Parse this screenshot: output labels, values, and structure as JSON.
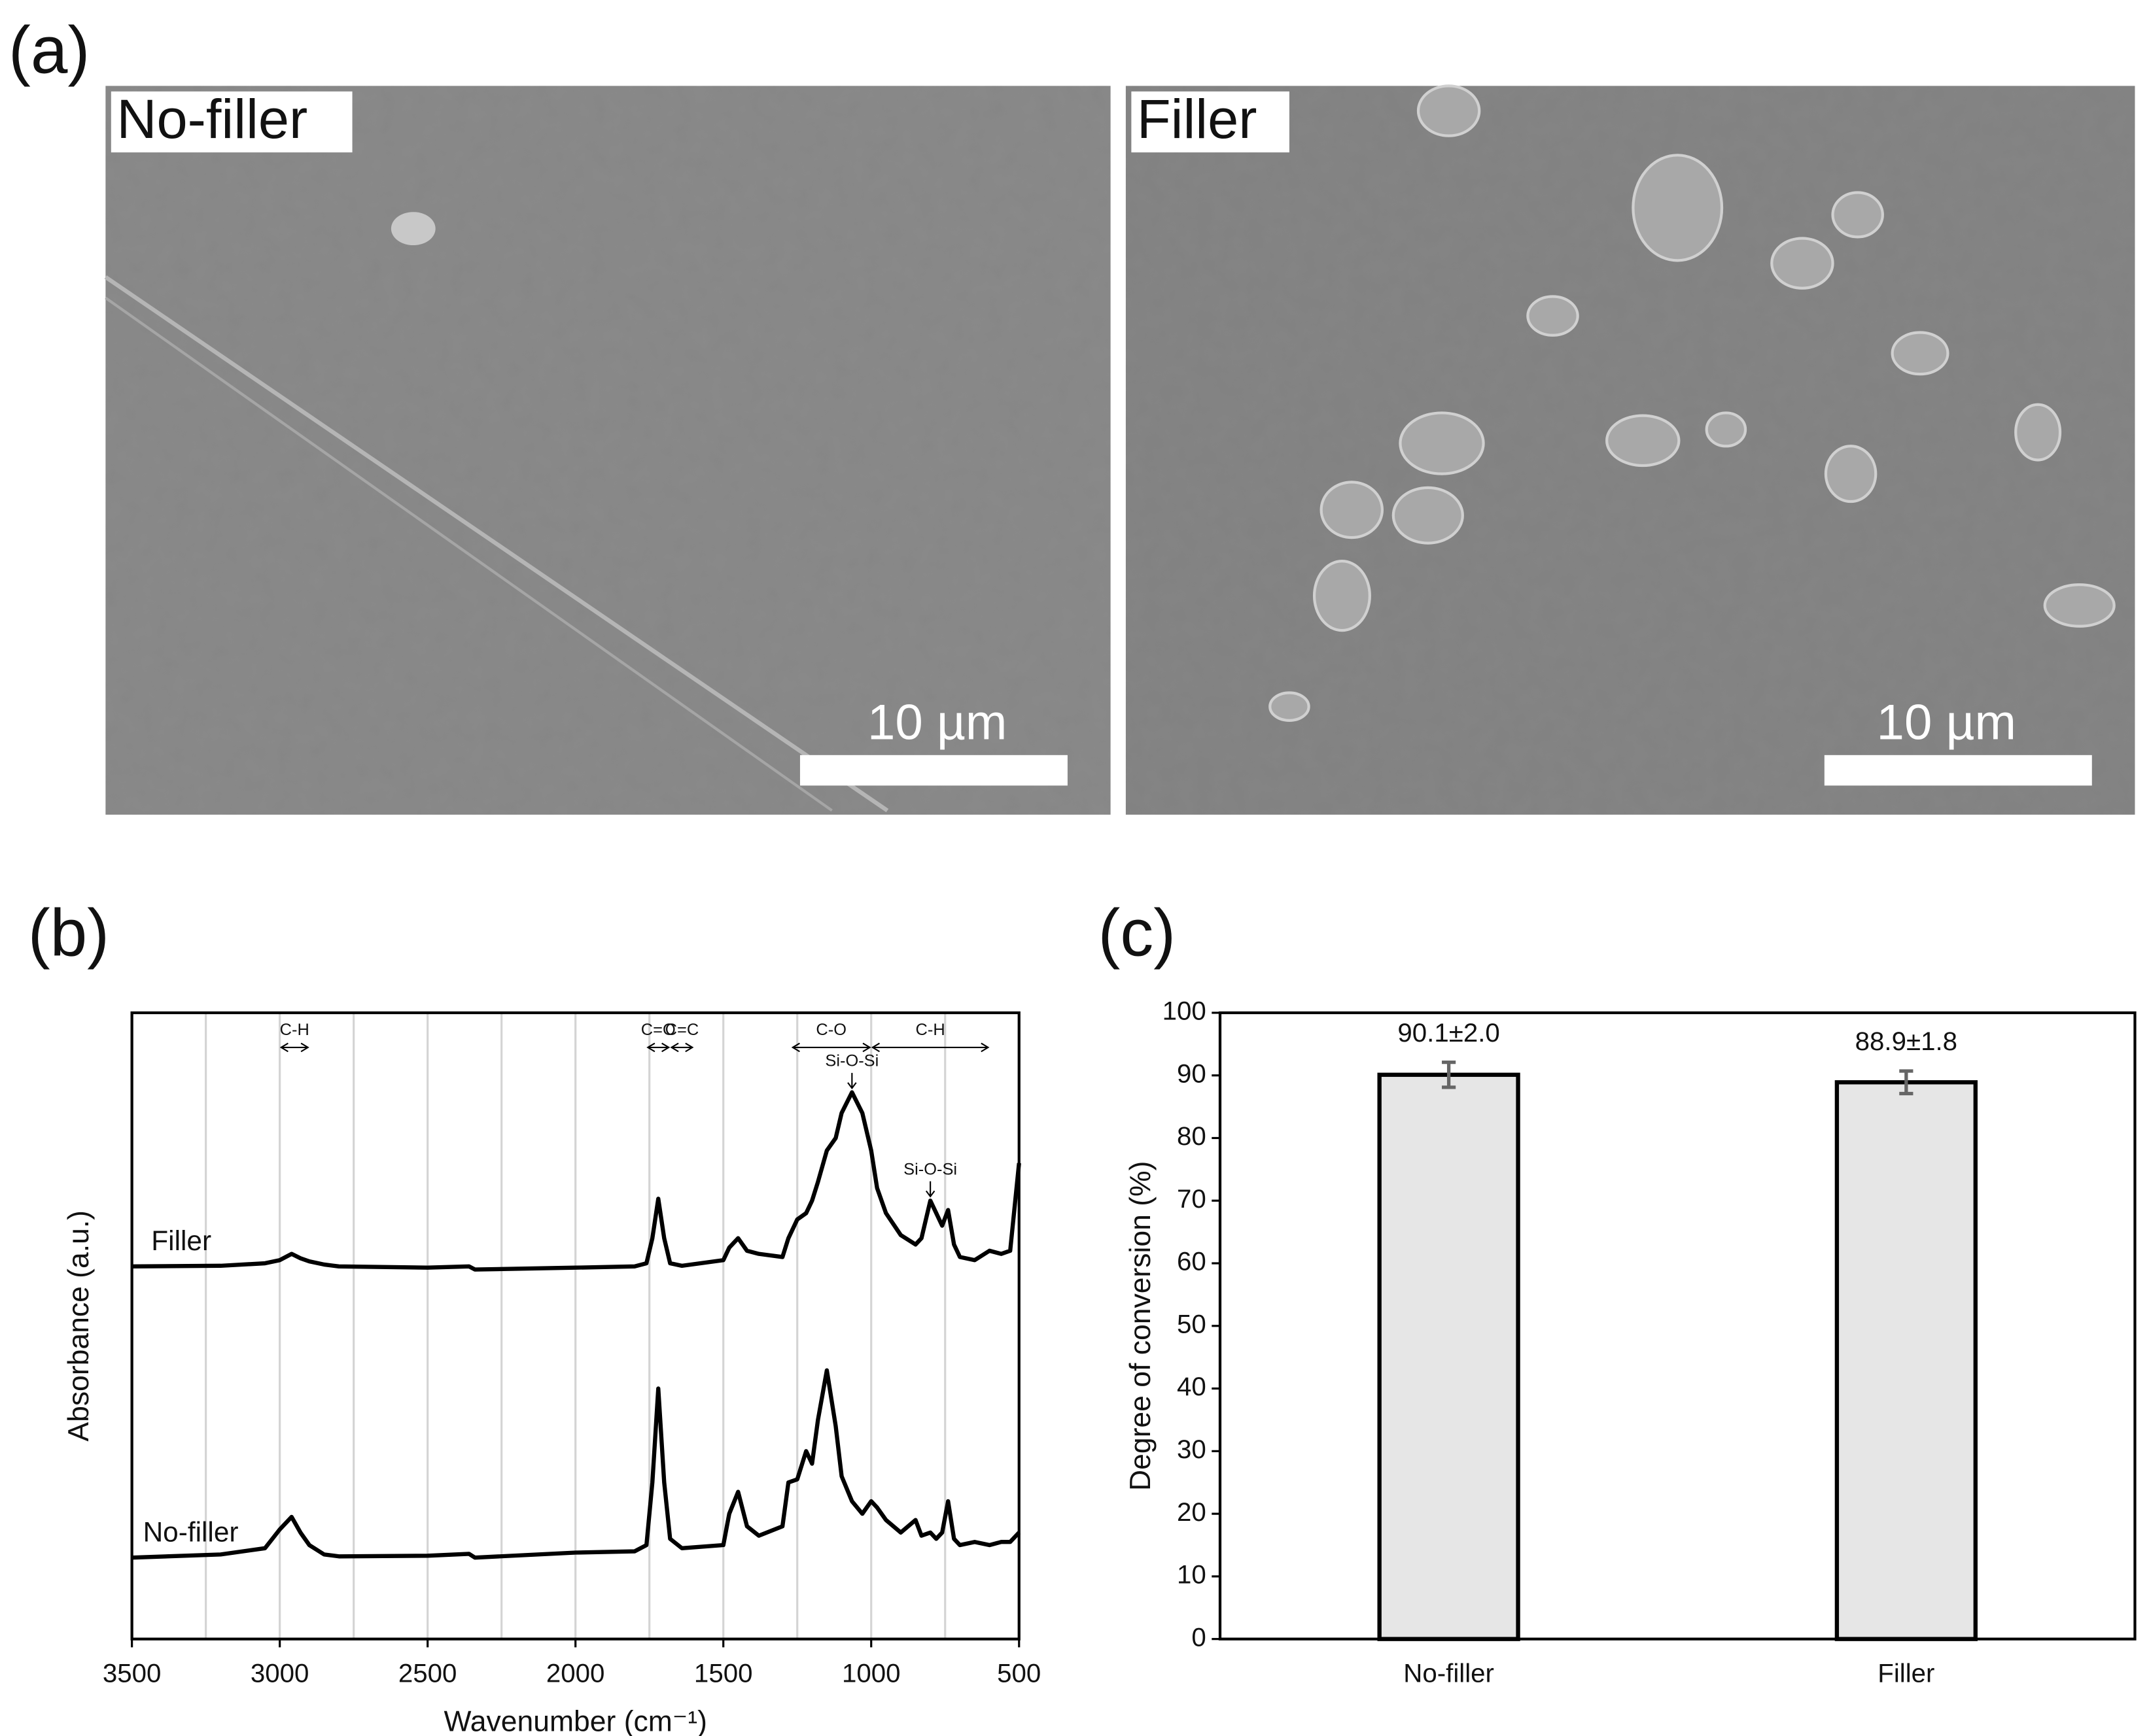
{
  "panel_a": {
    "label": "(a)",
    "images": [
      {
        "label": "No-filler",
        "scale_bar": "10 µm"
      },
      {
        "label": "Filler",
        "scale_bar": "10 µm"
      }
    ]
  },
  "chart_data": [
    {
      "type": "line",
      "label": "(b)",
      "xlabel": "Wavenumber (cm⁻¹)",
      "ylabel": "Absorbance (a.u.)",
      "xlim": [
        3500,
        500
      ],
      "xticks": [
        3500,
        3000,
        2500,
        2000,
        1500,
        1000,
        500
      ],
      "minor_xticks": [
        3250,
        3000,
        2750,
        2500,
        2250,
        2000,
        1750,
        1500,
        1250,
        1000,
        750
      ],
      "ylim": [
        0,
        100
      ],
      "color": "#000000",
      "x": [
        3500,
        3200,
        3050,
        3000,
        2960,
        2930,
        2900,
        2850,
        2800,
        2500,
        2360,
        2340,
        2000,
        1800,
        1760,
        1740,
        1720,
        1700,
        1680,
        1640,
        1500,
        1480,
        1450,
        1420,
        1380,
        1300,
        1280,
        1250,
        1220,
        1200,
        1180,
        1150,
        1120,
        1100,
        1065,
        1030,
        1000,
        980,
        950,
        900,
        850,
        830,
        800,
        780,
        760,
        740,
        720,
        700,
        650,
        600,
        560,
        530,
        500
      ],
      "series": [
        {
          "name": "Filler",
          "values": [
            59.5,
            59.6,
            60,
            60.5,
            61.5,
            60.8,
            60.3,
            59.8,
            59.5,
            59.3,
            59.5,
            59,
            59.3,
            59.5,
            60,
            64,
            70.3,
            64,
            60,
            59.6,
            60.5,
            62.5,
            64,
            62,
            61.5,
            61,
            64,
            67,
            68,
            70,
            73,
            78,
            80,
            84,
            87.3,
            84,
            78,
            72,
            68,
            64.5,
            63,
            64,
            70,
            68,
            66,
            68.5,
            63,
            61,
            60.5,
            62,
            61.5,
            62,
            76
          ]
        },
        {
          "name": "No-filler",
          "values": [
            13,
            13.5,
            14.5,
            17.5,
            19.5,
            17,
            15,
            13.5,
            13.2,
            13.3,
            13.6,
            13,
            13.8,
            14,
            15,
            25,
            40,
            25,
            16,
            14.5,
            15,
            20,
            23.5,
            18,
            16.5,
            18,
            25,
            25.5,
            30,
            28,
            35,
            42.9,
            34,
            26,
            22,
            20,
            22,
            21,
            19,
            17,
            19,
            16.5,
            17,
            16,
            17,
            22,
            16,
            15,
            15.5,
            15,
            15.5,
            15.5,
            17
          ]
        }
      ],
      "annotations": [
        {
          "text": "C-H",
          "span": [
            3000,
            2900
          ]
        },
        {
          "text": "C=O",
          "span": [
            1760,
            1680
          ]
        },
        {
          "text": "C=C",
          "span": [
            1680,
            1600
          ]
        },
        {
          "text": "C-O",
          "span": [
            1270,
            1000
          ]
        },
        {
          "text": "C-H",
          "span": [
            1000,
            600
          ]
        },
        {
          "text": "Si-O-Si",
          "x": 1065
        },
        {
          "text": "Si-O-Si",
          "x": 800
        }
      ]
    },
    {
      "type": "bar",
      "label": "(c)",
      "ylabel": "Degree of conversion (%)",
      "categories": [
        "No-filler",
        "Filler"
      ],
      "values": [
        90.1,
        88.9
      ],
      "errors": [
        2.0,
        1.8
      ],
      "value_labels": [
        "90.1±2.0",
        "88.9±1.8"
      ],
      "color": "#e6e6e6",
      "error_color": "#666666",
      "ylim": [
        0,
        100
      ],
      "yticks": [
        0,
        10,
        20,
        30,
        40,
        50,
        60,
        70,
        80,
        90,
        100
      ]
    }
  ]
}
